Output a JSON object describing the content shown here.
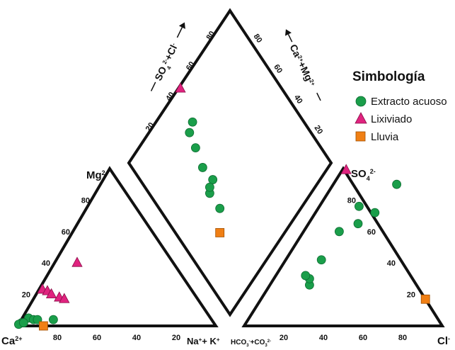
{
  "chart_data": {
    "type": "scatter",
    "subtype": "piper-trilinear",
    "colors": {
      "Extracto acuoso": "#1a9e4a",
      "Lixiviado": "#e0237f",
      "Lluvia": "#f07f14",
      "frame": "#111111"
    },
    "legend": {
      "title": "Simbología",
      "placement": "right",
      "entries": [
        {
          "name": "Extracto acuoso",
          "marker": "circle"
        },
        {
          "name": "Lixiviado",
          "marker": "triangle"
        },
        {
          "name": "Lluvia",
          "marker": "square"
        }
      ]
    },
    "cation_triangle": {
      "labels": {
        "left": "Ca",
        "left_sup": "2+",
        "top": "Mg",
        "top_sup": "2+",
        "right": "Na",
        "right_sup": "+",
        "right2": "+ K",
        "right2_sup": "+"
      },
      "bottom_ticks": [
        "80",
        "60",
        "40",
        "20"
      ],
      "left_ticks": [
        "20",
        "40",
        "60",
        "80"
      ]
    },
    "anion_triangle": {
      "labels": {
        "left": "HCO",
        "left_sub": "3",
        "left_sup": "-",
        "left2": "+CO",
        "left2_sub": "3",
        "left2_sup": "2-",
        "top": "SO",
        "top_sub": "4",
        "top_sup": "2-",
        "right": "Cl",
        "right_sup": "-"
      },
      "bottom_ticks": [
        "20",
        "40",
        "60",
        "80"
      ],
      "right_ticks": [
        "80",
        "60",
        "40",
        "20"
      ]
    },
    "diamond": {
      "left_axis_label": "SO",
      "left_axis_sub": "4",
      "left_axis_sup": "2-",
      "left_axis_label2": "+Cl",
      "left_axis_sup2": "-",
      "right_axis_label": "Ca",
      "right_axis_sup": "2+",
      "right_axis_label2": "+Mg",
      "right_axis_sup2": "2+",
      "left_ticks": [
        "20",
        "40",
        "60",
        "80"
      ],
      "right_ticks": [
        "80",
        "60",
        "40",
        "20"
      ]
    },
    "series": [
      {
        "name": "Extracto acuoso",
        "cation": [
          [
            92,
            5
          ],
          [
            97,
            2
          ],
          [
            99,
            1
          ],
          [
            96,
            2
          ],
          [
            90,
            4
          ],
          [
            88,
            4
          ],
          [
            80,
            4
          ]
        ],
        "anion": [
          [
            20,
            26
          ],
          [
            18,
            30
          ],
          [
            15,
            32
          ],
          [
            18,
            42
          ],
          [
            18,
            60
          ],
          [
            25,
            65
          ],
          [
            30,
            72
          ],
          [
            20,
            76
          ],
          [
            32,
            90
          ]
        ],
        "diamond": [
          [
            45,
            82
          ],
          [
            40,
            80
          ],
          [
            38,
            72
          ],
          [
            35,
            62
          ],
          [
            36,
            53
          ],
          [
            30,
            50
          ],
          [
            32,
            52
          ],
          [
            30,
            40
          ]
        ]
      },
      {
        "name": "Lixiviado",
        "cation": [
          [
            76,
            23
          ],
          [
            74,
            22
          ],
          [
            73,
            20
          ],
          [
            70,
            18
          ],
          [
            68,
            17
          ],
          [
            50,
            40
          ]
        ],
        "anion": [
          [
            2,
            99
          ]
        ],
        "diamond": [
          [
            50,
            99
          ]
        ]
      },
      {
        "name": "Lluvia",
        "cation": [
          [
            87,
            0
          ]
        ],
        "anion": [
          [
            83,
            17
          ]
        ],
        "diamond": [
          [
            22,
            32
          ]
        ]
      }
    ]
  }
}
